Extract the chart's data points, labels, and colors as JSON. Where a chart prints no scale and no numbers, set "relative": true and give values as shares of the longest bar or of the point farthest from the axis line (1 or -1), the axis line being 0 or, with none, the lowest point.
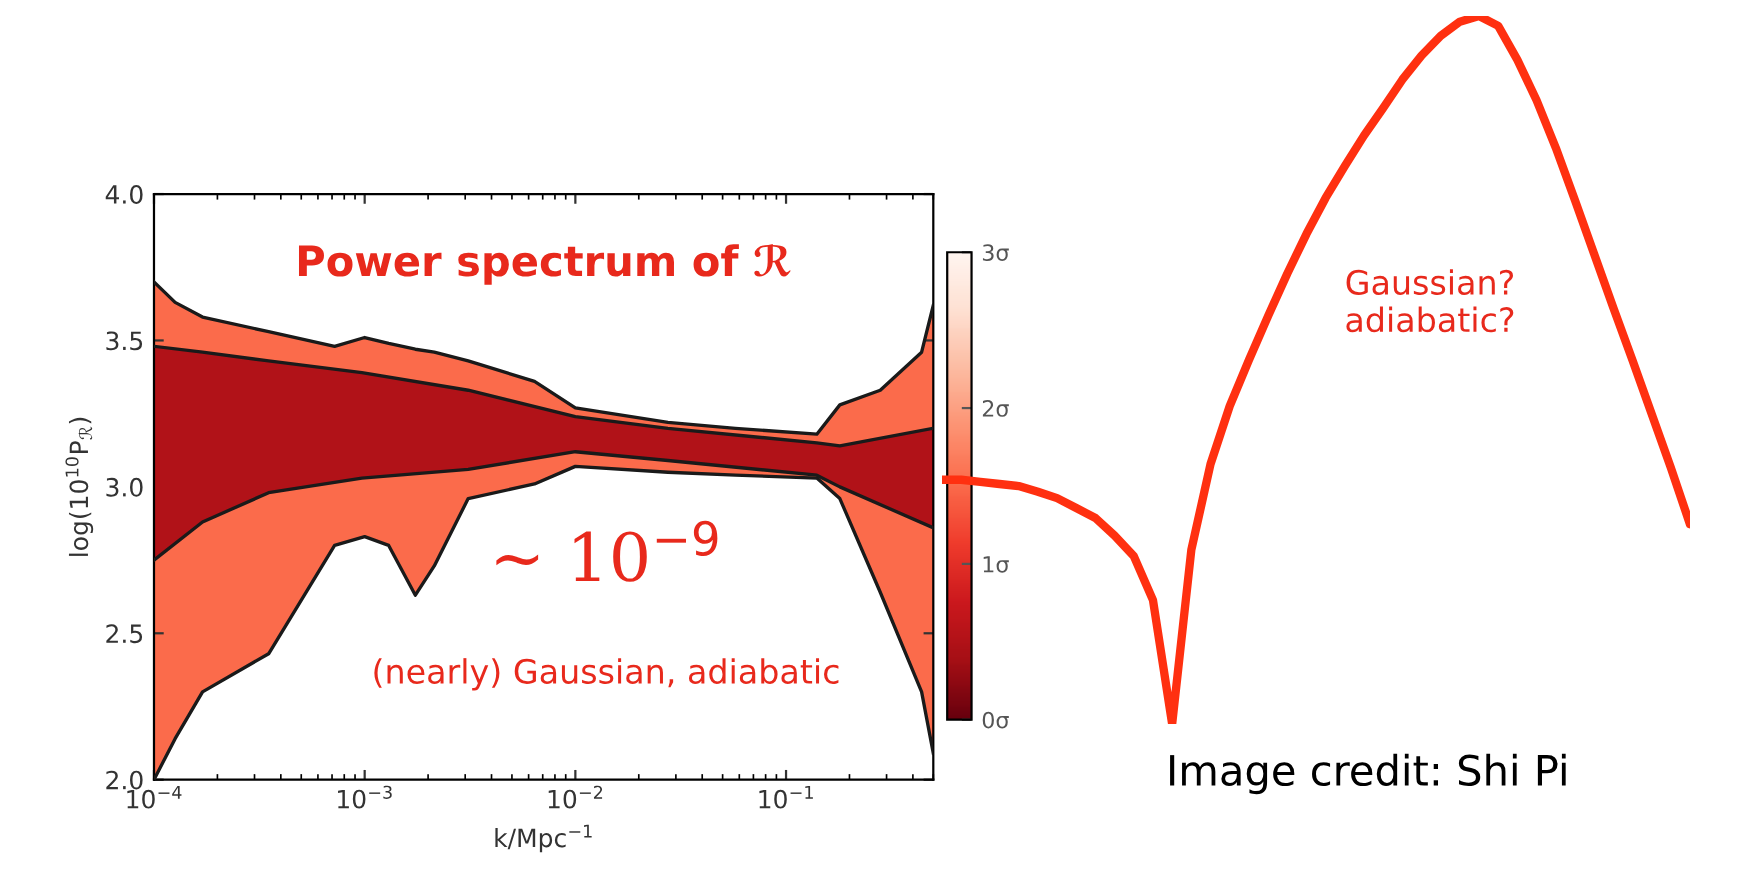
{
  "chart_data": [
    {
      "type": "line",
      "marker": "none",
      "xlabel": "k/Mpc$^{−1}$",
      "ylabel": "log(10$^{10}$P$_{ℛ}$)",
      "log": "x",
      "xlim": [
        0.0001,
        0.5
      ],
      "xticks": [
        {
          "value": 0.0001,
          "label": "10$^{−4}$"
        },
        {
          "value": 0.001,
          "label": "10$^{−3}$"
        },
        {
          "value": 0.01,
          "label": "10$^{−2}$"
        },
        {
          "value": 0.1,
          "label": "10$^{−1}$"
        }
      ],
      "ylim": [
        2.0,
        4.0
      ],
      "yticks": [
        {
          "value": 2.0,
          "label": "2.0"
        },
        {
          "value": 2.5,
          "label": "2.5"
        },
        {
          "value": 3.0,
          "label": "3.0"
        },
        {
          "value": 3.5,
          "label": "3.5"
        },
        {
          "value": 4.0,
          "label": "4.0"
        }
      ],
      "clim": [
        0,
        3
      ],
      "cticks": [
        {
          "value": 0,
          "label": "0σ"
        },
        {
          "value": 1,
          "label": "1σ"
        },
        {
          "value": 2,
          "label": "2σ"
        },
        {
          "value": 3,
          "label": "3σ"
        }
      ],
      "grid": false,
      "line_style": "solid",
      "series": [
        {
          "color": "#1a1a1a",
          "x": [
            0.0001,
            0.000126,
            0.00017,
            0.00035,
            0.00072,
            0.001,
            0.0013,
            0.00174,
            0.00214,
            0.0031,
            0.0064,
            0.01,
            0.0275,
            0.0575,
            0.14,
            0.18,
            0.28,
            0.44,
            0.5
          ],
          "values": [
            3.7,
            3.63,
            3.58,
            3.53,
            3.48,
            3.51,
            3.49,
            3.47,
            3.46,
            3.43,
            3.36,
            3.27,
            3.22,
            3.2,
            3.18,
            3.28,
            3.33,
            3.46,
            3.62
          ],
          "upper": [
            3.7,
            3.63,
            3.58,
            3.53,
            3.48,
            3.51,
            3.49,
            3.47,
            3.46,
            3.43,
            3.36,
            3.27,
            3.22,
            3.2,
            3.18,
            3.28,
            3.33,
            3.46,
            3.62
          ],
          "lower": [
            2.0,
            2.14,
            2.3,
            2.43,
            2.8,
            2.83,
            2.8,
            2.63,
            2.73,
            2.96,
            3.01,
            3.07,
            3.05,
            3.04,
            3.03,
            2.96,
            2.64,
            2.3,
            2.09
          ]
        },
        {
          "color": "#1a1a1a",
          "x": [
            0.0001,
            0.000126,
            0.00017,
            0.00035,
            0.00072,
            0.001,
            0.0013,
            0.00174,
            0.00214,
            0.0031,
            0.0064,
            0.01,
            0.0275,
            0.0575,
            0.14,
            0.18,
            0.28,
            0.44,
            0.5
          ],
          "values": [
            2.0,
            2.14,
            2.3,
            2.43,
            2.8,
            2.83,
            2.8,
            2.63,
            2.73,
            2.96,
            3.01,
            3.07,
            3.05,
            3.04,
            3.03,
            2.96,
            2.64,
            2.3,
            2.09
          ]
        },
        {
          "color": "#1a1a1a",
          "x": [
            0.0001,
            0.00017,
            0.00035,
            0.00097,
            0.0031,
            0.01,
            0.0275,
            0.14,
            0.18,
            0.5
          ],
          "values": [
            3.48,
            3.46,
            3.43,
            3.39,
            3.33,
            3.24,
            3.2,
            3.15,
            3.14,
            3.2
          ],
          "upper": [
            3.48,
            3.46,
            3.43,
            3.39,
            3.33,
            3.24,
            3.2,
            3.15,
            3.14,
            3.2
          ],
          "lower": [
            2.75,
            2.88,
            2.98,
            3.03,
            3.06,
            3.12,
            3.09,
            3.04,
            3.0,
            2.86
          ]
        },
        {
          "color": "#1a1a1a",
          "x": [
            0.0001,
            0.00017,
            0.00035,
            0.00097,
            0.0031,
            0.01,
            0.0275,
            0.14,
            0.18,
            0.5
          ],
          "values": [
            2.75,
            2.88,
            2.98,
            3.03,
            3.06,
            3.12,
            3.09,
            3.04,
            3.0,
            2.86
          ]
        }
      ],
      "annotations": [
        "Power spectrum of ℛ",
        "~ 10$^{−9}$",
        "(nearly) Gaussian, adiabatic"
      ]
    },
    {
      "type": "line",
      "relative": true,
      "categories": [
        null,
        null,
        null,
        null,
        null,
        null,
        null,
        null,
        null,
        null,
        null,
        null,
        null,
        null,
        null,
        null,
        null,
        null,
        null,
        null,
        null,
        null,
        null,
        null,
        null,
        null,
        null,
        null,
        null,
        null,
        null,
        null,
        null,
        null,
        null,
        null,
        null,
        null,
        null,
        null
      ],
      "series": [
        {
          "color": "#ff3010",
          "values": [
            0.345,
            0.345,
            0.342,
            0.339,
            0.336,
            0.328,
            0.319,
            0.305,
            0.291,
            0.266,
            0.237,
            0.175,
            0.0,
            0.246,
            0.367,
            0.449,
            0.514,
            0.576,
            0.636,
            0.692,
            0.743,
            0.788,
            0.831,
            0.87,
            0.91,
            0.944,
            0.972,
            0.992,
            1.0,
            0.986,
            0.938,
            0.881,
            0.814,
            0.74,
            0.664,
            0.588,
            0.514,
            0.438,
            0.362,
            0.282
          ]
        }
      ],
      "annotations": [
        "Gaussian?\nadiabatic?",
        "Image credit: Shi Pi"
      ]
    }
  ]
}
